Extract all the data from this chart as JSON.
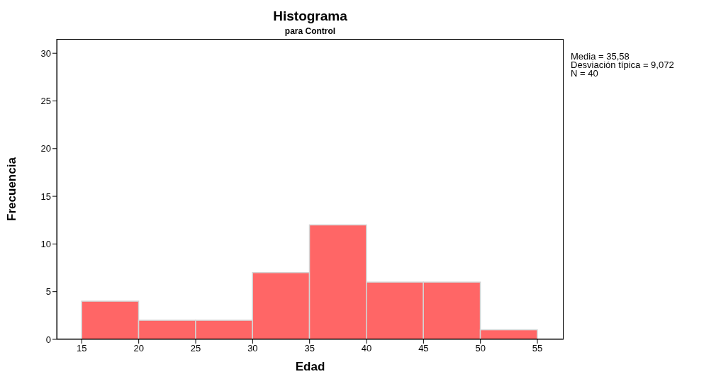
{
  "chart_data": {
    "type": "histogram",
    "title": "Histograma",
    "subtitle": "para Control",
    "xlabel": "Edad",
    "ylabel": "Frecuencia",
    "bins": [
      15,
      20,
      25,
      30,
      35,
      40,
      45,
      50,
      55
    ],
    "values": [
      4,
      2,
      2,
      7,
      12,
      6,
      6,
      1
    ],
    "color": "#ff6666",
    "xlim": [
      12.8,
      57.3
    ],
    "xticks": [
      15,
      20,
      25,
      30,
      35,
      40,
      45,
      50,
      55
    ],
    "ylim": [
      0,
      31.5
    ],
    "yticks": [
      0,
      5,
      10,
      15,
      20,
      25,
      30
    ],
    "annotations": [
      "Media = 35,58",
      "Desviación típica = 9,072",
      "N = 40"
    ]
  }
}
